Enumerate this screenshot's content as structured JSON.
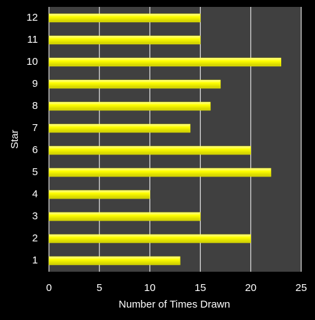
{
  "chart_data": {
    "type": "bar",
    "orientation": "horizontal",
    "x_label": "Number of Times Drawn",
    "y_label": "Star",
    "categories": [
      "1",
      "2",
      "3",
      "4",
      "5",
      "6",
      "7",
      "8",
      "9",
      "10",
      "11",
      "12"
    ],
    "values": [
      13,
      20,
      15,
      10,
      22,
      20,
      14,
      16,
      17,
      23,
      15,
      15
    ],
    "color": "#ffff00",
    "xlim": [
      0,
      25
    ],
    "xticks": [
      0,
      5,
      10,
      15,
      20,
      25
    ],
    "grid": true
  }
}
